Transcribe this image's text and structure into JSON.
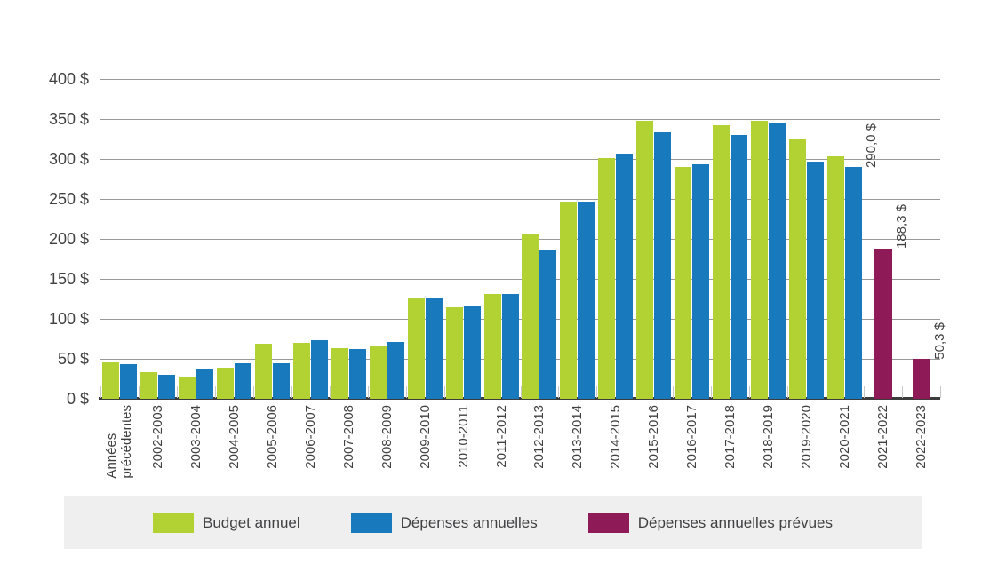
{
  "colors": {
    "budget": "#b2d234",
    "depenses": "#1879bd",
    "prevues": "#8e1b57",
    "gridline": "#9a9a9a",
    "axis": "#3c3c3c",
    "tick": "#c9c9c9",
    "text": "#414042",
    "legend_bg": "#efefef"
  },
  "chart_data": {
    "type": "bar",
    "title": "",
    "xlabel": "",
    "ylabel": "",
    "unit": "$",
    "ylim": [
      0,
      400
    ],
    "ystep": 50,
    "grid": true,
    "legend_position": "bottom",
    "y_tick_labels": [
      "400 $",
      "350 $",
      "300 $",
      "250 $",
      "200 $",
      "150 $",
      "100 $",
      "50 $",
      "0 $"
    ],
    "categories": [
      "Années\nprécédentes",
      "2002-2003",
      "2003-2004",
      "2004-2005",
      "2005-2006",
      "2006-2007",
      "2007-2008",
      "2008-2009",
      "2009-2010",
      "2010-2011",
      "2011-2012",
      "2012-2013",
      "2013-2014",
      "2014-2015",
      "2015-2016",
      "2016-2017",
      "2017-2018",
      "2018-2019",
      "2019-2020",
      "2020-2021",
      "2021-2022",
      "2022-2023"
    ],
    "series": [
      {
        "name": "Budget annuel",
        "color_key": "budget",
        "values": [
          46,
          33,
          27,
          39,
          69,
          70,
          63,
          66,
          127,
          114,
          131,
          207,
          247,
          301,
          348,
          290,
          342,
          348,
          326,
          303,
          null,
          null
        ]
      },
      {
        "name": "Dépenses annuelles",
        "color_key": "depenses",
        "values": [
          43,
          30,
          38,
          44,
          44,
          73,
          62,
          71,
          126,
          117,
          131,
          186,
          247,
          307,
          333,
          293,
          330,
          344,
          297,
          290,
          null,
          null
        ]
      },
      {
        "name": "Dépenses annuelles prévues",
        "color_key": "prevues",
        "values": [
          null,
          null,
          null,
          null,
          null,
          null,
          null,
          null,
          null,
          null,
          null,
          null,
          null,
          null,
          null,
          null,
          null,
          null,
          null,
          null,
          188.3,
          50.3
        ]
      }
    ],
    "annotations": [
      {
        "category_index": 19,
        "series_index": 1,
        "value": 290.0,
        "label": "290,0 $"
      },
      {
        "category_index": 20,
        "series_index": 2,
        "value": 188.3,
        "label": "188,3 $"
      },
      {
        "category_index": 21,
        "series_index": 2,
        "value": 50.3,
        "label": "50,3 $"
      }
    ]
  },
  "legend": {
    "items": [
      {
        "label": "Budget annuel",
        "color_key": "budget"
      },
      {
        "label": "Dépenses annuelles",
        "color_key": "depenses"
      },
      {
        "label": "Dépenses annuelles prévues",
        "color_key": "prevues"
      }
    ]
  }
}
